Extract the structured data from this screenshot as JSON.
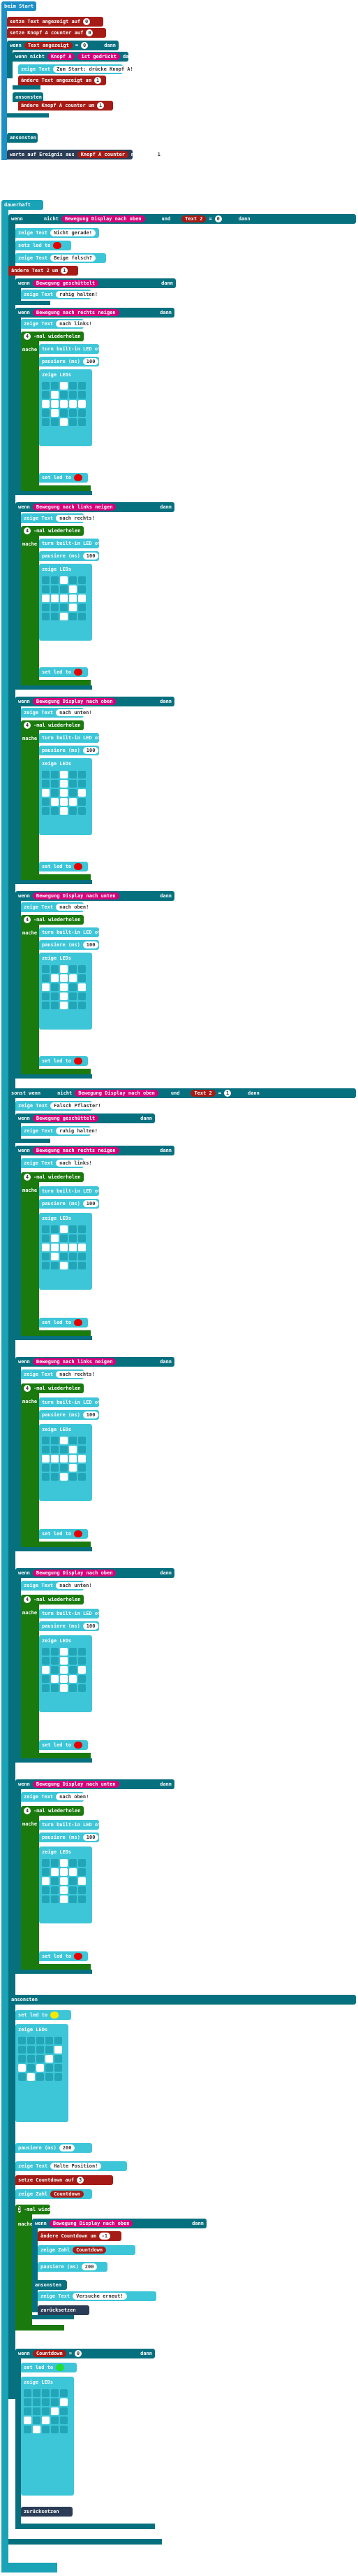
{
  "start": {
    "header": "beim Start",
    "line1_label": "setze Text angezeigt auf",
    "line1_value": "0",
    "line2_label": "setze Knopf A counter auf",
    "line2_value": "0",
    "if_label": "wenn",
    "if_var": "Text angezeigt",
    "if_op": "=",
    "if_val": "0",
    "then": "dann",
    "show_text": "zeige Text",
    "show_text_value": "Zum Start: drücke Knopf A!",
    "change_label": "ändere Text angezeigt",
    "change_by": "um",
    "change_value": "1",
    "while_label": "wenn",
    "not": "nicht",
    "knopf_a": "Knopf A",
    "ist_gedrueckt": "ist gedrückt",
    "andere_change": "ändere Knopf A counter",
    "andere_by": "um",
    "andere_value": "1",
    "otherwise": "ansonsten",
    "wait_label": "warte auf Ereignis aus",
    "wait_var": "Knopf A counter",
    "wait_with": "mit Wert",
    "wait_value": "1"
  },
  "forever": {
    "header": "dauerhaft",
    "if1_wenn": "wenn",
    "if1_not": "nicht",
    "if1_gesture": "Bewegung Display nach oben",
    "if1_and": "und",
    "if1_var": "Text 2",
    "if1_op": "=",
    "if1_val": "0",
    "then": "dann",
    "show_text": "zeige Text",
    "halte_gerade": "Nicht gerade!",
    "led_off": "setz led to",
    "loesche_seite": "Beige falsch?",
    "change_text2": "ändere Text 2",
    "change_text2_um": "um",
    "change_text2_val": "1",
    "g_geschuettelt": "Bewegung geschüttelt",
    "ruhig_halten": "ruhig halten!",
    "g_rechts": "Bewegung nach rechts neigen",
    "text_nach_links": "nach links!",
    "repeat_n": "4",
    "repeat_label": "-mal wiederholen",
    "mache": "mache",
    "turn_on": "turn built-in LED off",
    "pausiere": "pausiere (ms)",
    "pausiere_val": "100",
    "zeige_leds": "zeige LEDs",
    "g_links": "Bewegung nach links neigen",
    "text_nach_rechts": "nach rechts!",
    "g_oben": "Bewegung Display nach oben",
    "text_nach_unten": "nach unten!",
    "g_unten": "Bewegung Display nach unten",
    "text_nach_oben": "nach oben!",
    "sonst_wenn": "sonst wenn",
    "if2_var": "Text 2",
    "if2_op": "=",
    "if2_val": "1",
    "falsche_pflaster": "Falsch Pflaster!",
    "ansonsten": "ansonsten",
    "set_led_to": "set led to",
    "pausiere2_val": "200",
    "halte_position": "Halte Position!",
    "setze_countdown": "setze Countdown auf",
    "countdown_val": "3",
    "zeige_zahl": "zeige Zahl",
    "countdown": "Countdown",
    "while_count": "3",
    "andere_countdown": "ändere Countdown",
    "andere_countdown_um": "um",
    "andere_countdown_val": "-1",
    "versuche_erneut": "Versuche erneut!",
    "zuruecksetzen": "zurücksetzen",
    "wenn_countdown": "wenn",
    "wenn_countdown_op": "=",
    "wenn_countdown_val": "0",
    "dann": "dann"
  },
  "led_patterns": {
    "left_arrow": [
      [
        0,
        0,
        1,
        0,
        0
      ],
      [
        0,
        1,
        0,
        0,
        0
      ],
      [
        1,
        1,
        1,
        1,
        1
      ],
      [
        0,
        1,
        0,
        0,
        0
      ],
      [
        0,
        0,
        1,
        0,
        0
      ]
    ],
    "right_arrow": [
      [
        0,
        0,
        1,
        0,
        0
      ],
      [
        0,
        0,
        0,
        1,
        0
      ],
      [
        1,
        1,
        1,
        1,
        1
      ],
      [
        0,
        0,
        0,
        1,
        0
      ],
      [
        0,
        0,
        1,
        0,
        0
      ]
    ],
    "up_arrow": [
      [
        0,
        0,
        1,
        0,
        0
      ],
      [
        0,
        1,
        1,
        1,
        0
      ],
      [
        1,
        0,
        1,
        0,
        1
      ],
      [
        0,
        0,
        1,
        0,
        0
      ],
      [
        0,
        0,
        1,
        0,
        0
      ]
    ],
    "down_arrow": [
      [
        0,
        0,
        1,
        0,
        0
      ],
      [
        0,
        0,
        1,
        0,
        0
      ],
      [
        1,
        0,
        1,
        0,
        1
      ],
      [
        0,
        1,
        1,
        1,
        0
      ],
      [
        0,
        0,
        1,
        0,
        0
      ]
    ],
    "check": [
      [
        0,
        0,
        0,
        0,
        0
      ],
      [
        0,
        0,
        0,
        0,
        1
      ],
      [
        0,
        0,
        0,
        1,
        0
      ],
      [
        1,
        0,
        1,
        0,
        0
      ],
      [
        0,
        1,
        0,
        0,
        0
      ]
    ]
  },
  "colors": {
    "basic": "#1e90c8",
    "logic": "#07707f",
    "variables": "#a61b15",
    "input": "#d6007b",
    "loops": "#1a7a0e",
    "led": "#3dc6d8"
  }
}
